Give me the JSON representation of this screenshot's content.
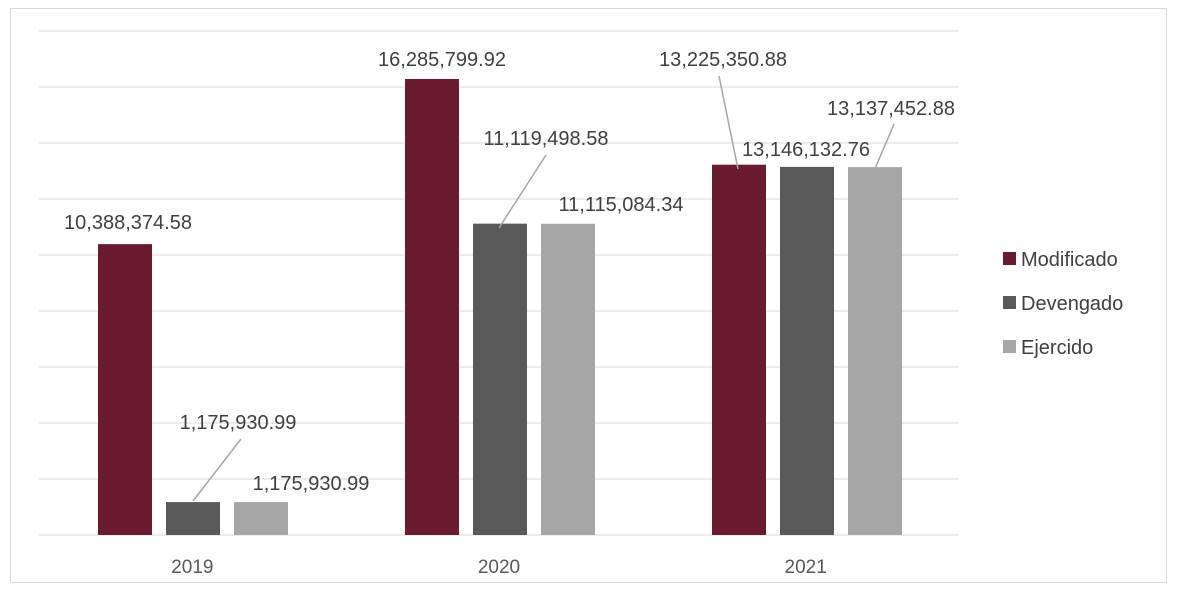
{
  "chart_data": {
    "type": "bar",
    "categories": [
      "2019",
      "2020",
      "2021"
    ],
    "series": [
      {
        "name": "Modificado",
        "color": "#6B1B2F",
        "values": [
          10388374.58,
          16285799.92,
          13225350.88
        ],
        "labels": [
          "10,388,374.58",
          "16,285,799.92",
          "13,225,350.88"
        ]
      },
      {
        "name": "Devengado",
        "color": "#595959",
        "values": [
          1175930.99,
          11119498.58,
          13146132.76
        ],
        "labels": [
          "1,175,930.99",
          "11,119,498.58",
          "13,146,132.76"
        ]
      },
      {
        "name": "Ejercido",
        "color": "#A6A6A6",
        "values": [
          1175930.99,
          11115084.34,
          13137452.88
        ],
        "labels": [
          "1,175,930.99",
          "11,115,084.34",
          "13,137,452.88"
        ]
      }
    ],
    "ylim": [
      0,
      18000000
    ],
    "gridline_step": 2000000,
    "grid": true,
    "legend": "right",
    "title": "",
    "xlabel": "",
    "ylabel": ""
  }
}
